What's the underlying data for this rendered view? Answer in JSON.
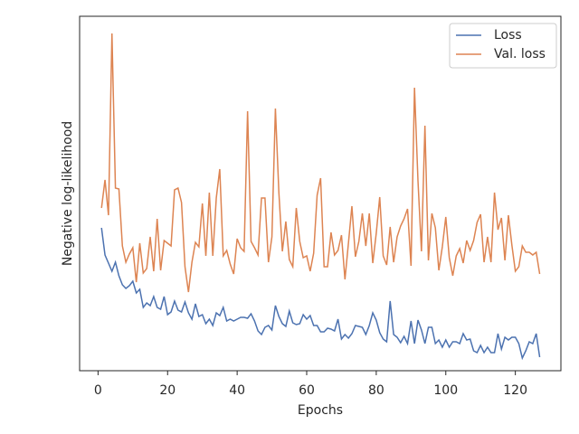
{
  "chart_data": {
    "type": "line",
    "xlabel": "Epochs",
    "ylabel": "Negative log-likelihood",
    "x": [
      1,
      2,
      3,
      4,
      5,
      6,
      7,
      8,
      9,
      10,
      11,
      12,
      13,
      14,
      15,
      16,
      17,
      18,
      19,
      20,
      21,
      22,
      23,
      24,
      25,
      26,
      27,
      28,
      29,
      30,
      31,
      32,
      33,
      34,
      35,
      36,
      37,
      38,
      39,
      40,
      41,
      42,
      43,
      44,
      45,
      46,
      47,
      48,
      49,
      50,
      51,
      52,
      53,
      54,
      55,
      56,
      57,
      58,
      59,
      60,
      61,
      62,
      63,
      64,
      65,
      66,
      67,
      68,
      69,
      70,
      71,
      72,
      73,
      74,
      75,
      76,
      77,
      78,
      79,
      80,
      81,
      82,
      83,
      84,
      85,
      86,
      87,
      88,
      89,
      90,
      91,
      92,
      93,
      94,
      95,
      96,
      97,
      98,
      99,
      100,
      101,
      102,
      103,
      104,
      105,
      106,
      107,
      108,
      109,
      110,
      111,
      112,
      113,
      114,
      115,
      116,
      117,
      118,
      119,
      120,
      121,
      122,
      123,
      124,
      125,
      126,
      127
    ],
    "series": [
      {
        "name": "Loss",
        "color": "#4c72b0",
        "values": [
          158,
          128,
          119,
          110,
          120,
          105,
          95,
          91,
          94,
          99,
          86,
          90,
          70,
          75,
          72,
          82,
          70,
          68,
          82,
          62,
          65,
          77,
          67,
          65,
          76,
          64,
          57,
          74,
          60,
          62,
          52,
          57,
          50,
          64,
          61,
          70,
          55,
          57,
          55,
          57,
          59,
          59,
          58,
          63,
          55,
          44,
          40,
          48,
          50,
          45,
          72,
          60,
          52,
          49,
          66,
          53,
          51,
          52,
          62,
          57,
          61,
          50,
          50,
          43,
          43,
          47,
          46,
          44,
          57,
          35,
          40,
          36,
          41,
          50,
          49,
          48,
          40,
          50,
          64,
          56,
          42,
          35,
          32,
          77,
          40,
          37,
          31,
          38,
          30,
          55,
          30,
          56,
          45,
          30,
          48,
          48,
          30,
          34,
          26,
          34,
          26,
          32,
          32,
          30,
          41,
          34,
          35,
          22,
          20,
          28,
          20,
          26,
          20,
          20,
          41,
          24,
          37,
          34,
          37,
          37,
          30,
          14,
          22,
          32,
          30,
          41,
          15
        ]
      },
      {
        "name": "Val. loss",
        "color": "#dd8452",
        "values": [
          180,
          211,
          172,
          373,
          202,
          201,
          138,
          120,
          129,
          136,
          98,
          141,
          108,
          113,
          148,
          110,
          168,
          111,
          144,
          141,
          138,
          200,
          202,
          186,
          115,
          87,
          120,
          142,
          137,
          185,
          127,
          197,
          127,
          191,
          223,
          127,
          133,
          118,
          107,
          146,
          136,
          132,
          287,
          143,
          136,
          128,
          191,
          191,
          120,
          148,
          290,
          197,
          132,
          165,
          123,
          115,
          180,
          143,
          125,
          127,
          110,
          130,
          194,
          213,
          115,
          115,
          153,
          128,
          133,
          150,
          101,
          141,
          182,
          126,
          143,
          174,
          138,
          174,
          119,
          152,
          192,
          127,
          117,
          159,
          120,
          148,
          160,
          168,
          179,
          116,
          313,
          210,
          132,
          271,
          122,
          174,
          158,
          111,
          137,
          170,
          125,
          105,
          127,
          135,
          119,
          144,
          133,
          144,
          164,
          173,
          120,
          148,
          120,
          197,
          156,
          169,
          122,
          172,
          139,
          110,
          115,
          138,
          131,
          131,
          128,
          131,
          107
        ]
      }
    ],
    "xlim": [
      -5.3,
      133.1
    ],
    "xticks": [
      0,
      20,
      40,
      60,
      80,
      100,
      120
    ],
    "ylim": [
      0,
      392
    ],
    "legend": "upper right"
  }
}
